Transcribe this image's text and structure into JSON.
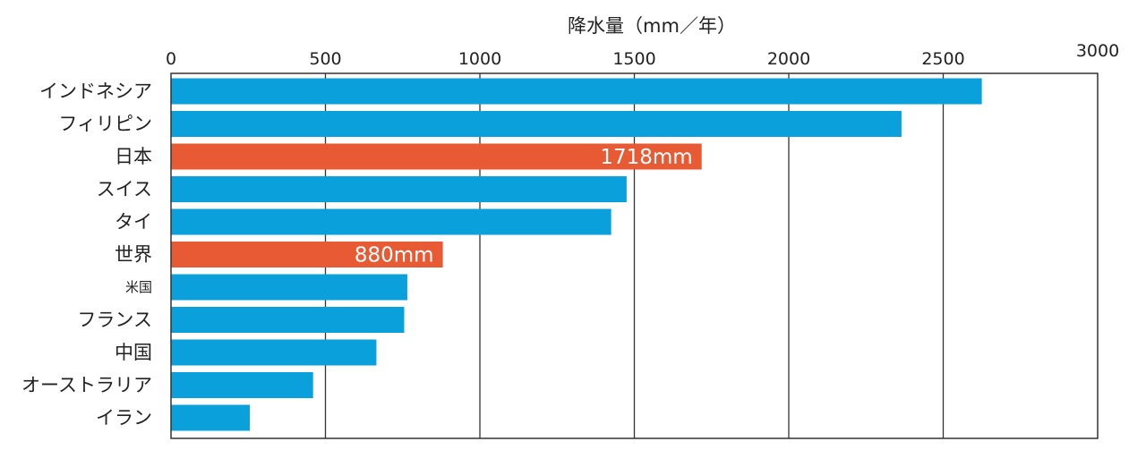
{
  "chart_data": {
    "type": "bar",
    "orientation": "horizontal",
    "title": "",
    "xlabel": "降水量（mm／年）",
    "ylabel": "",
    "xlim": [
      0,
      3000
    ],
    "xticks": [
      "0",
      "500",
      "1000",
      "1500",
      "2000",
      "2500",
      "3000"
    ],
    "grid": true,
    "categories": [
      "インドネシア",
      "フィリピン",
      "日本",
      "スイス",
      "タイ",
      "世界",
      "米国",
      "フランス",
      "中国",
      "オーストラリア",
      "イラン"
    ],
    "values": [
      2625,
      2365,
      1718,
      1475,
      1425,
      880,
      765,
      755,
      665,
      460,
      255
    ],
    "highlight": [
      false,
      false,
      true,
      false,
      false,
      true,
      false,
      false,
      false,
      false,
      false
    ],
    "data_labels": [
      "",
      "",
      "1718mm",
      "",
      "",
      "880mm",
      "",
      "",
      "",
      "",
      ""
    ],
    "colors": {
      "normal": "#0AA0DC",
      "highlight": "#E85A33"
    }
  }
}
